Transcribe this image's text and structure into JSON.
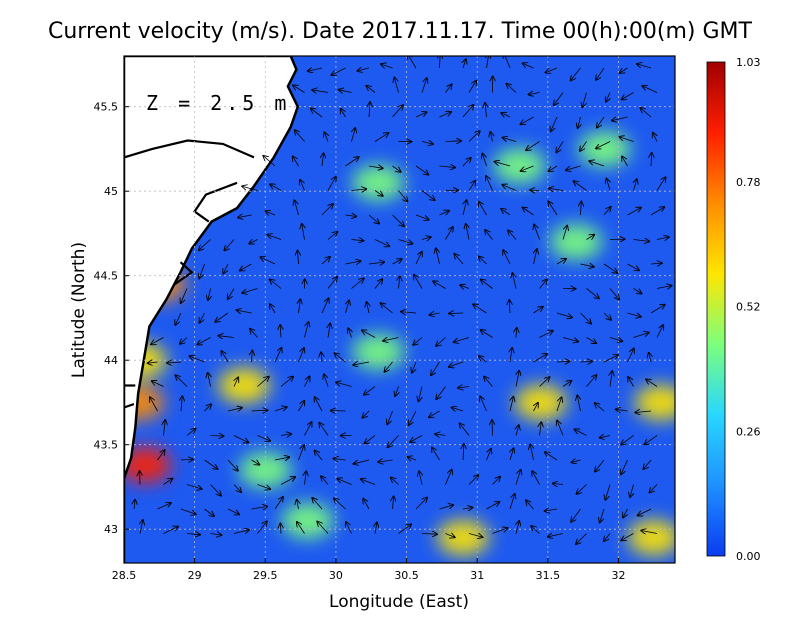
{
  "chart_data": {
    "type": "heatmap",
    "title": "Current velocity (m/s). Date 2017.11.17. Time 00(h):00(m) GMT",
    "xlabel": "Longitude (East)",
    "ylabel": "Latitude (North)",
    "annotation": "Z = 2.5 m",
    "xlim": [
      28.5,
      32.4
    ],
    "ylim": [
      42.8,
      45.8
    ],
    "x_ticks": [
      28.5,
      29,
      29.5,
      30,
      30.5,
      31,
      31.5,
      32
    ],
    "x_tick_labels": [
      "28.5",
      "29",
      "29.5",
      "30",
      "30.5",
      "31",
      "31.5",
      "32"
    ],
    "y_ticks": [
      43,
      43.5,
      44,
      44.5,
      45,
      45.5
    ],
    "y_tick_labels": [
      "43",
      "43.5",
      "44",
      "44.5",
      "45",
      "45.5"
    ],
    "grid": true,
    "colorbar": {
      "min": 0.0,
      "max": 1.03,
      "ticks": [
        0.0,
        0.26,
        0.52,
        0.78,
        1.03
      ],
      "tick_labels": [
        "0.00",
        "0.26",
        "0.52",
        "0.78",
        "1.03"
      ],
      "colors": [
        "#0a3cf0",
        "#1e90ff",
        "#28d7ff",
        "#7cff7c",
        "#ffe600",
        "#ff8c00",
        "#ff1e00",
        "#a00000"
      ]
    },
    "land_color": "#ffffff",
    "coast_color": "#000000",
    "hotspots": [
      {
        "lon": 28.65,
        "lat": 43.38,
        "speed": 0.85
      },
      {
        "lon": 28.6,
        "lat": 43.75,
        "speed": 0.8
      },
      {
        "lon": 28.62,
        "lat": 44.0,
        "speed": 0.6
      },
      {
        "lon": 28.75,
        "lat": 44.45,
        "speed": 0.75
      },
      {
        "lon": 32.25,
        "lat": 42.95,
        "speed": 0.65
      },
      {
        "lon": 32.3,
        "lat": 43.75,
        "speed": 0.6
      },
      {
        "lon": 31.45,
        "lat": 43.75,
        "speed": 0.55
      },
      {
        "lon": 29.35,
        "lat": 43.85,
        "speed": 0.55
      },
      {
        "lon": 30.3,
        "lat": 44.05,
        "speed": 0.5
      },
      {
        "lon": 30.9,
        "lat": 42.95,
        "speed": 0.55
      },
      {
        "lon": 31.3,
        "lat": 45.15,
        "speed": 0.5
      },
      {
        "lon": 31.9,
        "lat": 45.25,
        "speed": 0.5
      },
      {
        "lon": 30.3,
        "lat": 45.05,
        "speed": 0.45
      },
      {
        "lon": 29.5,
        "lat": 43.35,
        "speed": 0.45
      },
      {
        "lon": 29.8,
        "lat": 43.05,
        "speed": 0.42
      },
      {
        "lon": 31.7,
        "lat": 44.7,
        "speed": 0.4
      }
    ],
    "coastline_lonlat": [
      [
        29.68,
        45.8
      ],
      [
        29.72,
        45.72
      ],
      [
        29.66,
        45.62
      ],
      [
        29.73,
        45.5
      ],
      [
        29.68,
        45.38
      ],
      [
        29.56,
        45.2
      ],
      [
        29.42,
        45.03
      ],
      [
        29.3,
        44.9
      ],
      [
        29.12,
        44.82
      ],
      [
        28.98,
        44.66
      ],
      [
        28.9,
        44.52
      ],
      [
        28.8,
        44.36
      ],
      [
        28.68,
        44.2
      ],
      [
        28.64,
        44.0
      ],
      [
        28.6,
        43.8
      ],
      [
        28.58,
        43.6
      ],
      [
        28.55,
        43.42
      ],
      [
        28.5,
        43.3
      ]
    ],
    "inland_lines_lonlat": [
      [
        [
          28.5,
          45.2
        ],
        [
          28.7,
          45.25
        ],
        [
          28.95,
          45.3
        ],
        [
          29.2,
          45.28
        ],
        [
          29.42,
          45.2
        ]
      ],
      [
        [
          29.3,
          45.05
        ],
        [
          29.08,
          44.98
        ],
        [
          29.0,
          44.88
        ],
        [
          29.1,
          44.82
        ]
      ],
      [
        [
          28.9,
          44.58
        ],
        [
          28.98,
          44.52
        ],
        [
          28.86,
          44.45
        ]
      ],
      [
        [
          28.5,
          43.85
        ],
        [
          28.58,
          43.85
        ]
      ],
      [
        [
          28.5,
          43.72
        ],
        [
          28.57,
          43.74
        ]
      ]
    ],
    "vector_field_note": "arrows show flow direction and relative magnitude"
  }
}
